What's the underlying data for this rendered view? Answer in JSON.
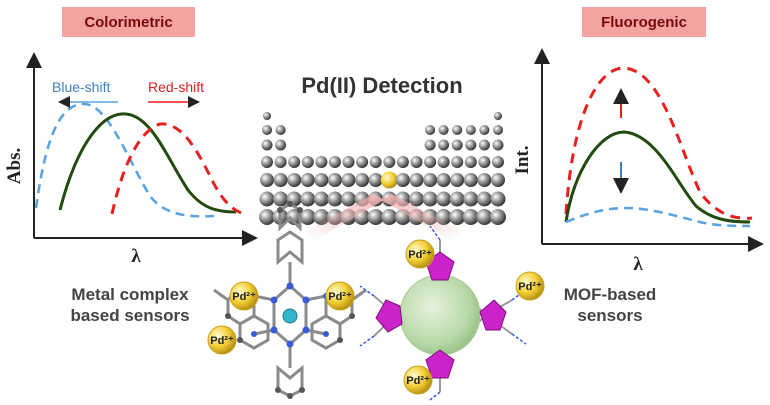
{
  "panels": {
    "colorimetric": {
      "tag": "Colorimetric",
      "ylabel": "Abs.",
      "xlabel": "λ",
      "blue_label": "Blue-shift",
      "red_label": "Red-shift"
    },
    "fluorogenic": {
      "tag": "Fluorogenic",
      "ylabel": "Int.",
      "xlabel": "λ"
    }
  },
  "center": {
    "title": "Pd(II) Detection"
  },
  "sensors": {
    "left_line1": "Metal complex",
    "left_line2": "based sensors",
    "right_line1": "MOF-based",
    "right_line2": "sensors"
  },
  "ion_label": "Pd²⁺",
  "colors": {
    "blue": "#5ba4e0",
    "green": "#234a0f",
    "red": "#e82020",
    "tag_bg": "#f4a3a3",
    "gold": "#f3cf35",
    "magenta": "#cc22cc"
  }
}
